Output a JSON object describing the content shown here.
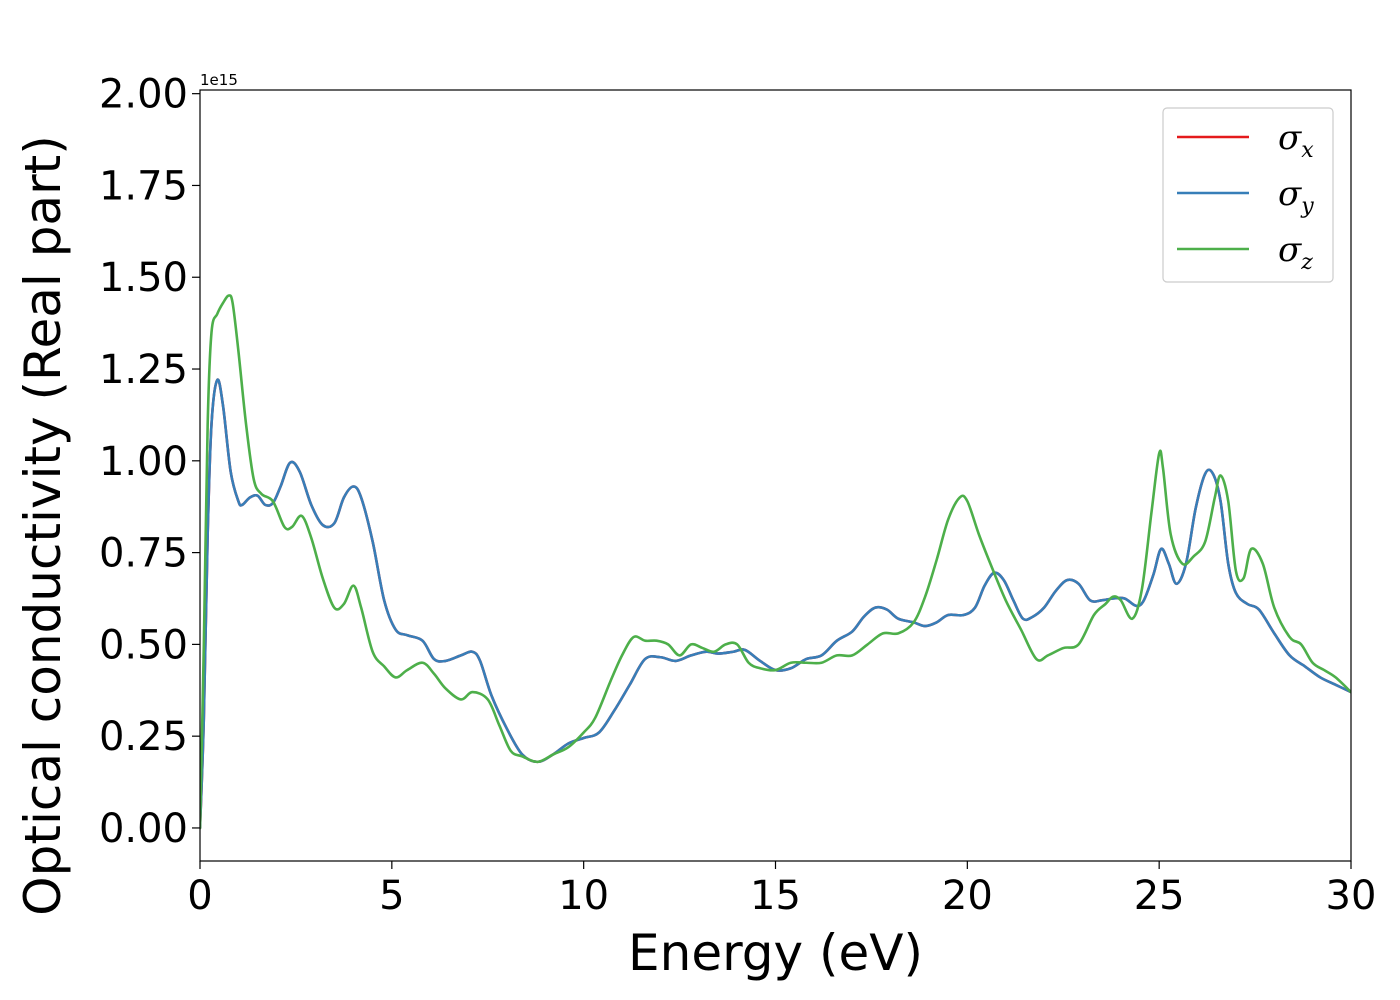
{
  "chart_data": {
    "type": "line",
    "title": "",
    "xlabel": "Energy (eV)",
    "ylabel": "Optical conductivity (Real part)",
    "y_offset_label": "1e15",
    "xlim": [
      0,
      30
    ],
    "ylim": [
      -0.09,
      2.01
    ],
    "xticks": [
      0,
      5,
      10,
      15,
      20,
      25,
      30
    ],
    "xtick_labels": [
      "0",
      "5",
      "10",
      "15",
      "20",
      "25",
      "30"
    ],
    "yticks": [
      0.0,
      0.25,
      0.5,
      0.75,
      1.0,
      1.25,
      1.5,
      1.75,
      2.0
    ],
    "ytick_labels": [
      "0.00",
      "0.25",
      "0.50",
      "0.75",
      "1.00",
      "1.25",
      "1.50",
      "1.75",
      "2.00"
    ],
    "grid": false,
    "legend_position": "top-right",
    "series": [
      {
        "name": "σx",
        "symbol": "σ",
        "subscript": "x",
        "color": "#e41a1c",
        "x": [
          0,
          0.1,
          0.2,
          0.3,
          0.45,
          0.6,
          0.8,
          1.0,
          1.1,
          1.3,
          1.5,
          1.7,
          1.9,
          2.1,
          2.35,
          2.6,
          2.9,
          3.2,
          3.5,
          3.75,
          4.0,
          4.2,
          4.5,
          4.8,
          5.1,
          5.4,
          5.8,
          6.1,
          6.4,
          6.8,
          7.1,
          7.3,
          7.6,
          8.0,
          8.4,
          8.8,
          9.2,
          9.6,
          10.0,
          10.4,
          10.8,
          11.2,
          11.6,
          12.0,
          12.4,
          12.8,
          13.2,
          13.5,
          13.9,
          14.2,
          14.6,
          15.0,
          15.4,
          15.8,
          16.2,
          16.6,
          17.0,
          17.3,
          17.6,
          17.9,
          18.2,
          18.6,
          18.9,
          19.2,
          19.5,
          19.9,
          20.2,
          20.45,
          20.7,
          20.95,
          21.2,
          21.45,
          21.7,
          22.0,
          22.3,
          22.6,
          22.9,
          23.2,
          23.5,
          23.8,
          24.1,
          24.4,
          24.6,
          24.85,
          25.05,
          25.25,
          25.45,
          25.7,
          25.95,
          26.2,
          26.4,
          26.6,
          26.8,
          27.0,
          27.3,
          27.6,
          28.0,
          28.4,
          28.8,
          29.2,
          29.6,
          30.0
        ],
        "y": [
          0.0,
          0.3,
          0.8,
          1.1,
          1.22,
          1.15,
          0.97,
          0.89,
          0.88,
          0.9,
          0.905,
          0.88,
          0.885,
          0.93,
          0.995,
          0.97,
          0.88,
          0.825,
          0.83,
          0.9,
          0.93,
          0.9,
          0.78,
          0.62,
          0.54,
          0.525,
          0.51,
          0.46,
          0.455,
          0.47,
          0.48,
          0.455,
          0.36,
          0.27,
          0.2,
          0.18,
          0.2,
          0.23,
          0.245,
          0.26,
          0.32,
          0.39,
          0.46,
          0.465,
          0.455,
          0.47,
          0.48,
          0.475,
          0.48,
          0.485,
          0.455,
          0.43,
          0.435,
          0.46,
          0.47,
          0.51,
          0.535,
          0.575,
          0.6,
          0.595,
          0.57,
          0.56,
          0.55,
          0.56,
          0.58,
          0.58,
          0.6,
          0.66,
          0.695,
          0.675,
          0.62,
          0.57,
          0.575,
          0.6,
          0.645,
          0.675,
          0.665,
          0.62,
          0.62,
          0.625,
          0.625,
          0.605,
          0.62,
          0.69,
          0.76,
          0.72,
          0.665,
          0.72,
          0.87,
          0.965,
          0.965,
          0.89,
          0.72,
          0.64,
          0.61,
          0.595,
          0.53,
          0.47,
          0.44,
          0.41,
          0.39,
          0.37
        ]
      },
      {
        "name": "σy",
        "symbol": "σ",
        "subscript": "y",
        "color": "#377eb8",
        "x": [
          0,
          0.1,
          0.2,
          0.3,
          0.45,
          0.6,
          0.8,
          1.0,
          1.1,
          1.3,
          1.5,
          1.7,
          1.9,
          2.1,
          2.35,
          2.6,
          2.9,
          3.2,
          3.5,
          3.75,
          4.0,
          4.2,
          4.5,
          4.8,
          5.1,
          5.4,
          5.8,
          6.1,
          6.4,
          6.8,
          7.1,
          7.3,
          7.6,
          8.0,
          8.4,
          8.8,
          9.2,
          9.6,
          10.0,
          10.4,
          10.8,
          11.2,
          11.6,
          12.0,
          12.4,
          12.8,
          13.2,
          13.5,
          13.9,
          14.2,
          14.6,
          15.0,
          15.4,
          15.8,
          16.2,
          16.6,
          17.0,
          17.3,
          17.6,
          17.9,
          18.2,
          18.6,
          18.9,
          19.2,
          19.5,
          19.9,
          20.2,
          20.45,
          20.7,
          20.95,
          21.2,
          21.45,
          21.7,
          22.0,
          22.3,
          22.6,
          22.9,
          23.2,
          23.5,
          23.8,
          24.1,
          24.4,
          24.6,
          24.85,
          25.05,
          25.25,
          25.45,
          25.7,
          25.95,
          26.2,
          26.4,
          26.6,
          26.8,
          27.0,
          27.3,
          27.6,
          28.0,
          28.4,
          28.8,
          29.2,
          29.6,
          30.0
        ],
        "y": [
          0.0,
          0.3,
          0.8,
          1.1,
          1.22,
          1.15,
          0.97,
          0.89,
          0.88,
          0.9,
          0.905,
          0.88,
          0.885,
          0.93,
          0.995,
          0.97,
          0.88,
          0.825,
          0.83,
          0.9,
          0.93,
          0.9,
          0.78,
          0.62,
          0.54,
          0.525,
          0.51,
          0.46,
          0.455,
          0.47,
          0.48,
          0.455,
          0.36,
          0.27,
          0.2,
          0.18,
          0.2,
          0.23,
          0.245,
          0.26,
          0.32,
          0.39,
          0.46,
          0.465,
          0.455,
          0.47,
          0.48,
          0.475,
          0.48,
          0.485,
          0.455,
          0.43,
          0.435,
          0.46,
          0.47,
          0.51,
          0.535,
          0.575,
          0.6,
          0.595,
          0.57,
          0.56,
          0.55,
          0.56,
          0.58,
          0.58,
          0.6,
          0.66,
          0.695,
          0.675,
          0.62,
          0.57,
          0.575,
          0.6,
          0.645,
          0.675,
          0.665,
          0.62,
          0.62,
          0.625,
          0.625,
          0.605,
          0.62,
          0.69,
          0.76,
          0.72,
          0.665,
          0.72,
          0.87,
          0.965,
          0.965,
          0.89,
          0.72,
          0.64,
          0.61,
          0.595,
          0.53,
          0.47,
          0.44,
          0.41,
          0.39,
          0.37
        ]
      },
      {
        "name": "σz",
        "symbol": "σ",
        "subscript": "z",
        "color": "#4daf4a",
        "x": [
          0,
          0.1,
          0.2,
          0.3,
          0.45,
          0.6,
          0.75,
          0.85,
          1.0,
          1.2,
          1.4,
          1.6,
          1.9,
          2.2,
          2.4,
          2.65,
          2.9,
          3.2,
          3.5,
          3.75,
          4.0,
          4.2,
          4.5,
          4.8,
          5.1,
          5.4,
          5.8,
          6.1,
          6.4,
          6.8,
          7.1,
          7.5,
          7.8,
          8.1,
          8.4,
          8.8,
          9.2,
          9.6,
          10.0,
          10.3,
          10.7,
          11.0,
          11.3,
          11.6,
          11.9,
          12.2,
          12.5,
          12.8,
          13.1,
          13.4,
          13.7,
          14.0,
          14.3,
          14.6,
          15.0,
          15.4,
          15.8,
          16.2,
          16.6,
          17.0,
          17.4,
          17.8,
          18.2,
          18.6,
          18.9,
          19.2,
          19.5,
          19.8,
          20.0,
          20.3,
          20.6,
          21.0,
          21.4,
          21.8,
          22.1,
          22.5,
          22.9,
          23.3,
          23.6,
          23.8,
          24.0,
          24.3,
          24.55,
          24.8,
          25.0,
          25.1,
          25.3,
          25.6,
          25.9,
          26.2,
          26.45,
          26.6,
          26.8,
          27.0,
          27.2,
          27.4,
          27.7,
          28.0,
          28.4,
          28.7,
          29.0,
          29.3,
          29.6,
          30.0
        ],
        "y": [
          0.0,
          0.5,
          1.1,
          1.35,
          1.4,
          1.43,
          1.45,
          1.43,
          1.3,
          1.1,
          0.95,
          0.91,
          0.89,
          0.82,
          0.82,
          0.85,
          0.79,
          0.68,
          0.6,
          0.61,
          0.66,
          0.6,
          0.48,
          0.44,
          0.41,
          0.43,
          0.45,
          0.42,
          0.38,
          0.35,
          0.37,
          0.35,
          0.28,
          0.21,
          0.195,
          0.18,
          0.2,
          0.22,
          0.26,
          0.3,
          0.4,
          0.47,
          0.52,
          0.51,
          0.51,
          0.5,
          0.47,
          0.5,
          0.49,
          0.48,
          0.5,
          0.5,
          0.45,
          0.435,
          0.43,
          0.45,
          0.45,
          0.45,
          0.47,
          0.47,
          0.5,
          0.53,
          0.53,
          0.56,
          0.63,
          0.73,
          0.84,
          0.9,
          0.89,
          0.8,
          0.72,
          0.62,
          0.54,
          0.46,
          0.47,
          0.49,
          0.5,
          0.58,
          0.61,
          0.63,
          0.62,
          0.57,
          0.65,
          0.86,
          1.02,
          0.98,
          0.8,
          0.72,
          0.74,
          0.78,
          0.9,
          0.96,
          0.89,
          0.7,
          0.68,
          0.76,
          0.72,
          0.6,
          0.52,
          0.5,
          0.45,
          0.43,
          0.41,
          0.37
        ]
      }
    ]
  }
}
